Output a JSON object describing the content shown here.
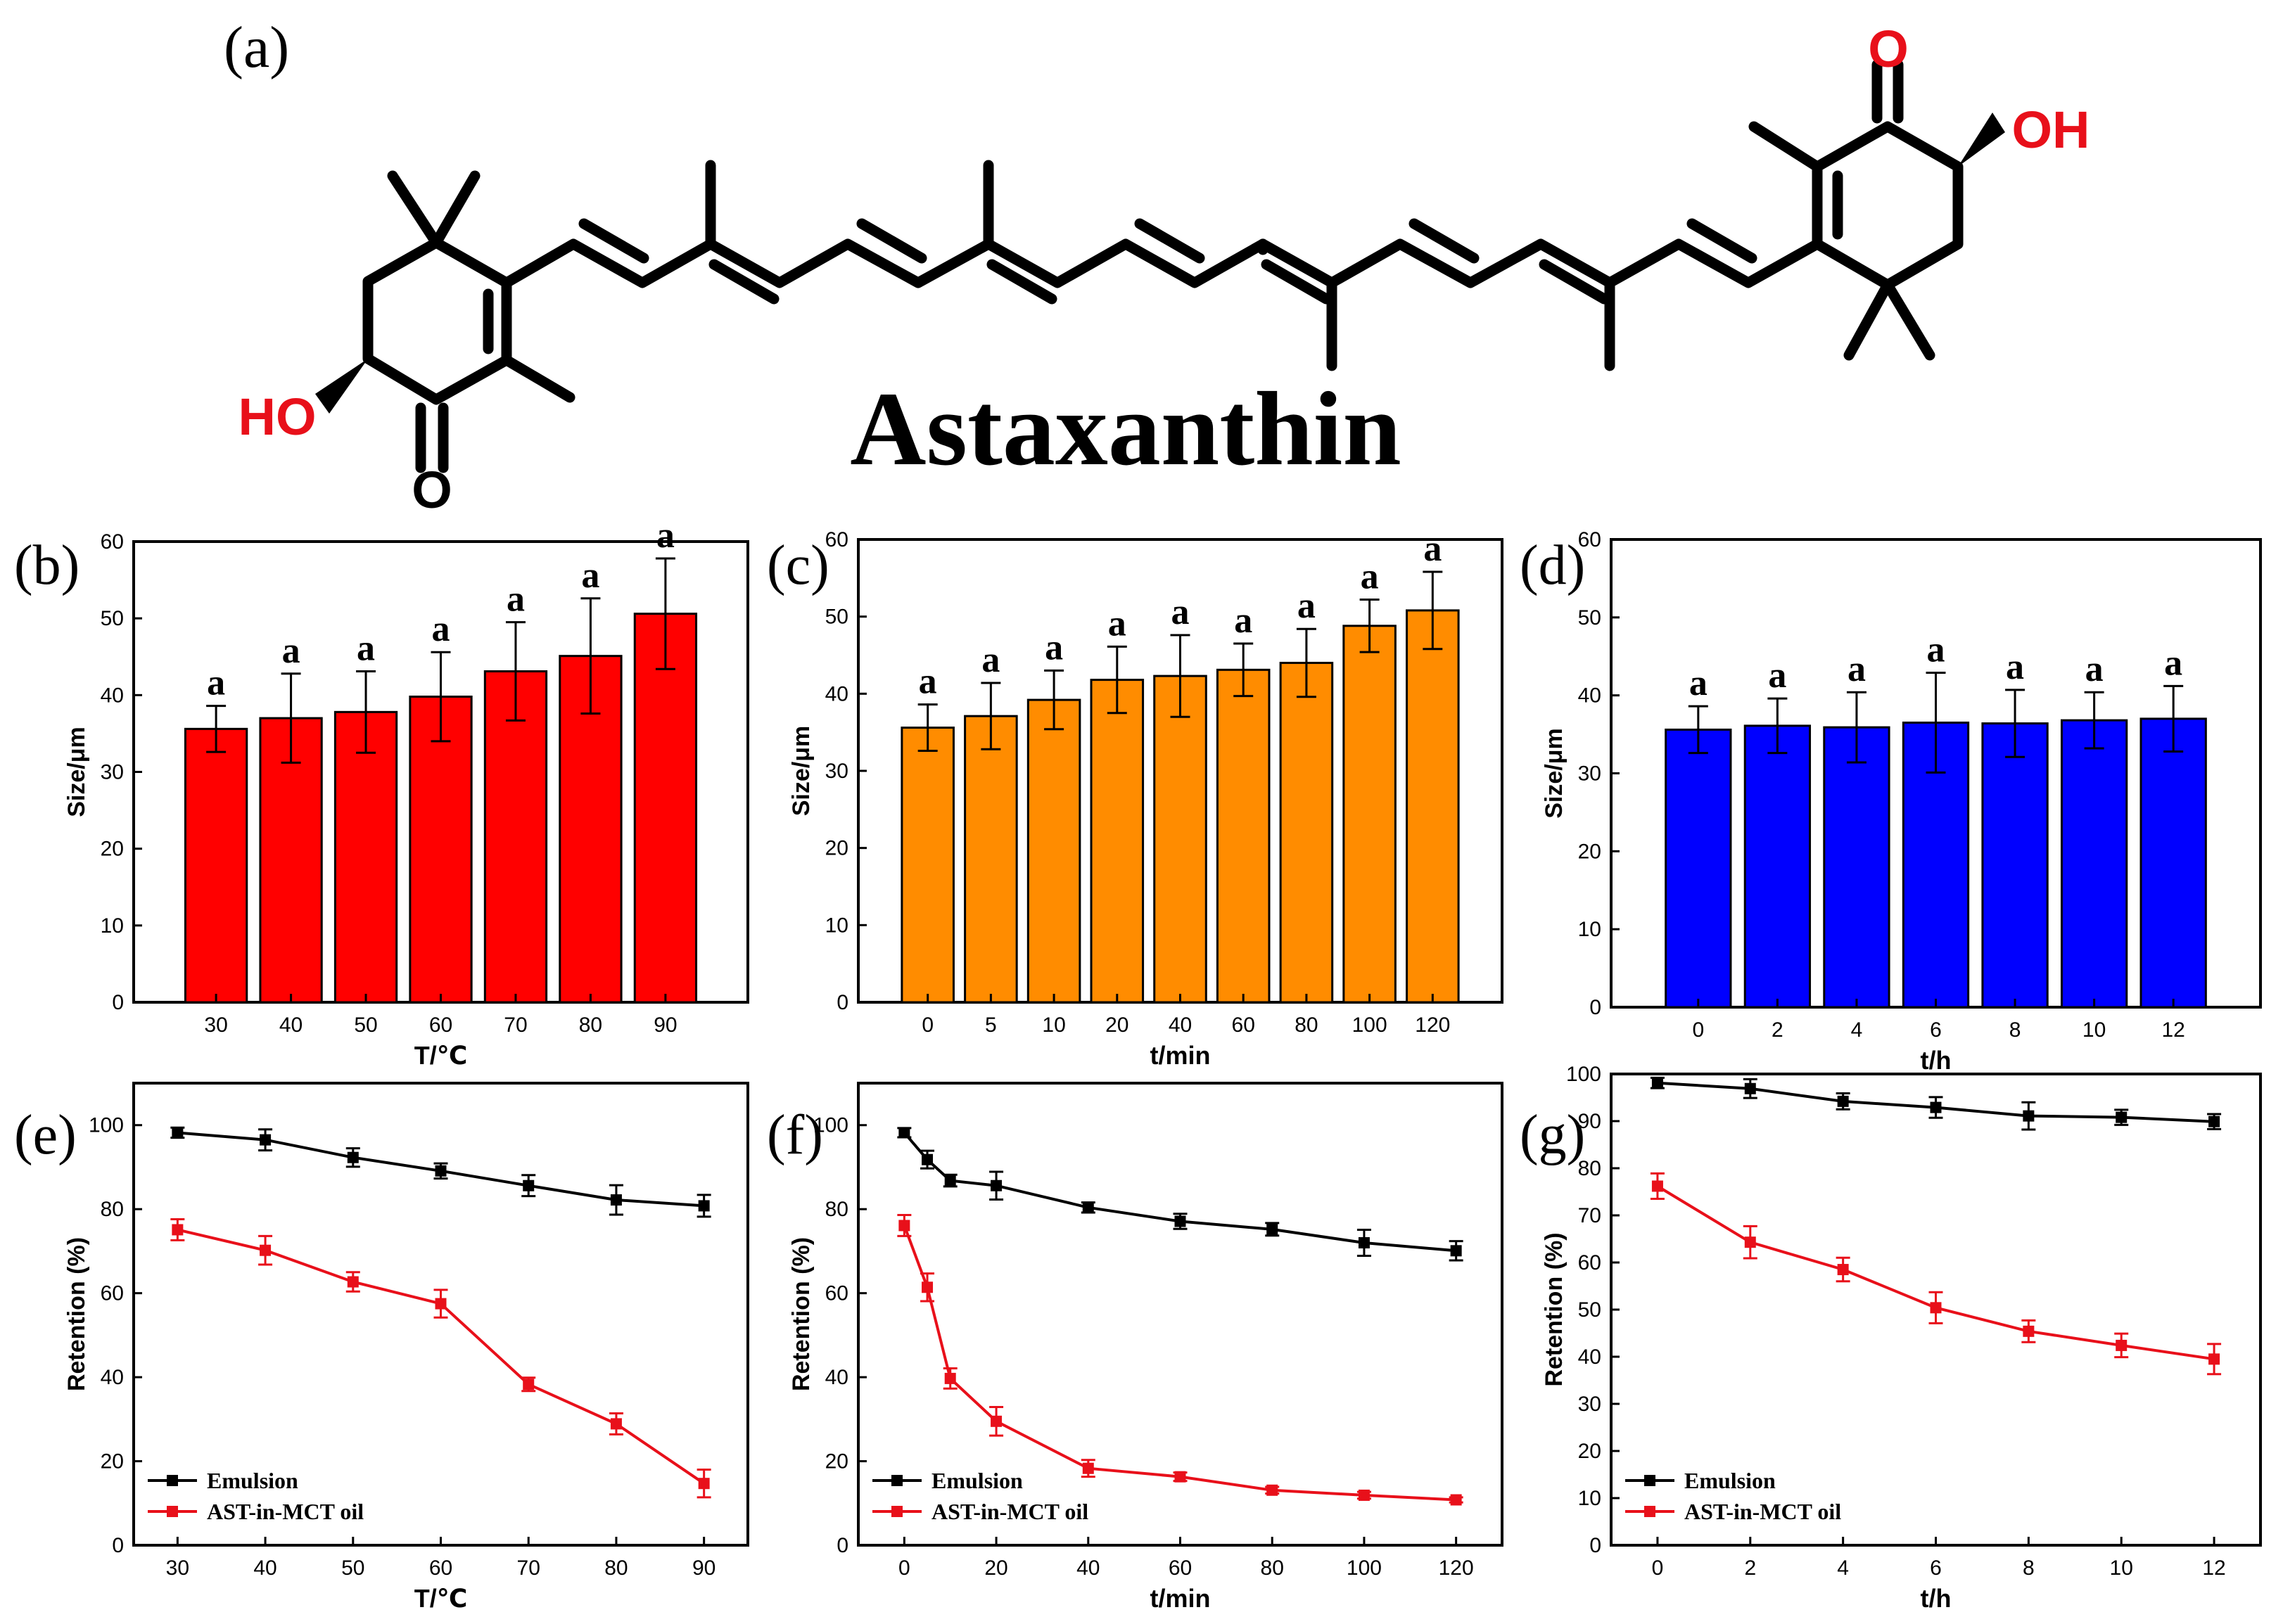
{
  "molecule": {
    "panel_label": "(a)",
    "name": "Astaxanthin",
    "atom_o": "O",
    "atom_oh": "OH",
    "atom_ho": "HO",
    "accent_color": "#e8101a"
  },
  "chart_data": [
    {
      "panel_label": "(b)",
      "type": "bar",
      "color": "#ff0000",
      "xlabel": "T/℃",
      "ylabel": "Size/μm",
      "ylim": [
        0,
        60
      ],
      "yticks": [
        0,
        10,
        20,
        30,
        40,
        50,
        60
      ],
      "categories": [
        "30",
        "40",
        "50",
        "60",
        "70",
        "80",
        "90"
      ],
      "values": [
        35.6,
        37.0,
        37.8,
        39.8,
        43.1,
        45.1,
        50.6
      ],
      "errors": [
        3.0,
        5.8,
        5.3,
        5.8,
        6.4,
        7.5,
        7.2
      ],
      "letters": [
        "a",
        "a",
        "a",
        "a",
        "a",
        "a",
        "a"
      ]
    },
    {
      "panel_label": "(c)",
      "type": "bar",
      "color": "#ff8c00",
      "xlabel": "t/min",
      "ylabel": "Size/μm",
      "ylim": [
        0,
        60
      ],
      "yticks": [
        0,
        10,
        20,
        30,
        40,
        50,
        60
      ],
      "categories": [
        "0",
        "5",
        "10",
        "20",
        "40",
        "60",
        "80",
        "100",
        "120"
      ],
      "values": [
        35.6,
        37.1,
        39.2,
        41.8,
        42.3,
        43.1,
        44.0,
        48.8,
        50.8
      ],
      "errors": [
        3.0,
        4.3,
        3.8,
        4.3,
        5.3,
        3.4,
        4.4,
        3.4,
        5.0
      ],
      "letters": [
        "a",
        "a",
        "a",
        "a",
        "a",
        "a",
        "a",
        "a",
        "a"
      ]
    },
    {
      "panel_label": "(d)",
      "type": "bar",
      "color": "#0000ff",
      "xlabel": "t/h",
      "ylabel": "Size/μm",
      "ylim": [
        0,
        60
      ],
      "yticks": [
        0,
        10,
        20,
        30,
        40,
        50,
        60
      ],
      "categories": [
        "0",
        "2",
        "4",
        "6",
        "8",
        "10",
        "12"
      ],
      "values": [
        35.6,
        36.1,
        35.9,
        36.5,
        36.4,
        36.8,
        37.0
      ],
      "errors": [
        3.0,
        3.5,
        4.5,
        6.4,
        4.3,
        3.6,
        4.2
      ],
      "letters": [
        "a",
        "a",
        "a",
        "a",
        "a",
        "a",
        "a"
      ]
    },
    {
      "panel_label": "(e)",
      "type": "line",
      "xlabel": "T/℃",
      "ylabel": "Retention (%)",
      "xlim": [
        25,
        95
      ],
      "xticks": [
        30,
        40,
        50,
        60,
        70,
        80,
        90
      ],
      "ylim": [
        0,
        110
      ],
      "yticks": [
        0,
        20,
        40,
        60,
        80,
        100
      ],
      "legend_position": "bottom-left",
      "series": [
        {
          "name": "Emulsion",
          "color": "#000000",
          "x": [
            30,
            40,
            50,
            60,
            70,
            80,
            90
          ],
          "y": [
            98.2,
            96.5,
            92.3,
            89.1,
            85.6,
            82.2,
            80.8
          ],
          "err": [
            1.2,
            2.5,
            2.2,
            1.8,
            2.5,
            3.5,
            2.6
          ]
        },
        {
          "name": "AST-in-MCT oil",
          "color": "#e8101a",
          "x": [
            30,
            40,
            50,
            60,
            70,
            80,
            90
          ],
          "y": [
            75.1,
            70.2,
            62.7,
            57.5,
            38.3,
            28.9,
            14.7
          ],
          "err": [
            2.5,
            3.4,
            2.3,
            3.3,
            1.6,
            2.5,
            3.3
          ]
        }
      ]
    },
    {
      "panel_label": "(f)",
      "type": "line",
      "xlabel": "t/min",
      "ylabel": "Retention (%)",
      "xlim": [
        -10,
        130
      ],
      "xticks": [
        0,
        20,
        40,
        60,
        80,
        100,
        120
      ],
      "ylim": [
        0,
        110
      ],
      "yticks": [
        0,
        20,
        40,
        60,
        80,
        100
      ],
      "legend_position": "bottom-left",
      "series": [
        {
          "name": "Emulsion",
          "color": "#000000",
          "x": [
            0,
            5,
            10,
            20,
            40,
            60,
            80,
            100,
            120
          ],
          "y": [
            98.2,
            91.8,
            86.8,
            85.6,
            80.4,
            77.1,
            75.2,
            72.0,
            70.1
          ],
          "err": [
            1.1,
            2.1,
            1.4,
            3.3,
            1.2,
            1.8,
            1.5,
            3.1,
            2.3
          ]
        },
        {
          "name": "AST-in-MCT oil",
          "color": "#e8101a",
          "x": [
            0,
            5,
            10,
            20,
            40,
            60,
            80,
            100,
            120
          ],
          "y": [
            76.1,
            61.4,
            39.7,
            29.5,
            18.3,
            16.3,
            13.1,
            11.9,
            10.8
          ],
          "err": [
            2.5,
            3.3,
            2.4,
            3.4,
            2.0,
            1.0,
            0.8,
            0.8,
            0.6
          ]
        }
      ]
    },
    {
      "panel_label": "(g)",
      "type": "line",
      "xlabel": "t/h",
      "ylabel": "Retention (%)",
      "xlim": [
        -1,
        13
      ],
      "xticks": [
        0,
        2,
        4,
        6,
        8,
        10,
        12
      ],
      "ylim": [
        0,
        100
      ],
      "yticks": [
        0,
        10,
        20,
        30,
        40,
        50,
        60,
        70,
        80,
        90,
        100
      ],
      "legend_position": "bottom-left",
      "series": [
        {
          "name": "Emulsion",
          "color": "#000000",
          "x": [
            0,
            2,
            4,
            6,
            8,
            10,
            12
          ],
          "y": [
            98.1,
            96.9,
            94.2,
            92.9,
            91.1,
            90.8,
            89.9
          ],
          "err": [
            1.1,
            2.0,
            1.7,
            2.2,
            2.9,
            1.6,
            1.6
          ]
        },
        {
          "name": "AST-in-MCT oil",
          "color": "#e8101a",
          "x": [
            0,
            2,
            4,
            6,
            8,
            10,
            12
          ],
          "y": [
            76.2,
            64.3,
            58.5,
            50.4,
            45.4,
            42.4,
            39.5
          ],
          "err": [
            2.7,
            3.4,
            2.5,
            3.3,
            2.3,
            2.5,
            3.2
          ]
        }
      ]
    }
  ]
}
